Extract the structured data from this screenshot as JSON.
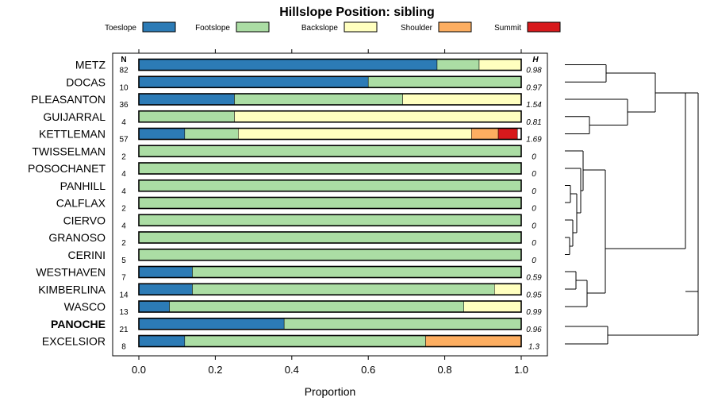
{
  "chart_data": {
    "type": "bar",
    "subtype": "stacked-horizontal-proportion",
    "title": "Hillslope Position: sibling",
    "xlabel": "Proportion",
    "ylabel": "",
    "xlim": [
      0,
      1
    ],
    "xticks": [
      "0.0",
      "0.2",
      "0.4",
      "0.6",
      "0.8",
      "1.0"
    ],
    "n_header": "N",
    "h_header": "H",
    "legend": [
      {
        "name": "Toeslope",
        "color": "#2C7BB6"
      },
      {
        "name": "Footslope",
        "color": "#ABDDA4"
      },
      {
        "name": "Backslope",
        "color": "#FFFFBF"
      },
      {
        "name": "Shoulder",
        "color": "#FDAE61"
      },
      {
        "name": "Summit",
        "color": "#D7191C"
      }
    ],
    "categories": [
      "METZ",
      "DOCAS",
      "PLEASANTON",
      "GUIJARRAL",
      "KETTLEMAN",
      "TWISSELMAN",
      "POSOCHANET",
      "PANHILL",
      "CALFLAX",
      "CIERVO",
      "GRANOSO",
      "CERINI",
      "WESTHAVEN",
      "KIMBERLINA",
      "WASCO",
      "PANOCHE",
      "EXCELSIOR"
    ],
    "highlighted": "PANOCHE",
    "n": [
      "82",
      "10",
      "36",
      "4",
      "57",
      "2",
      "4",
      "4",
      "2",
      "4",
      "2",
      "5",
      "7",
      "14",
      "13",
      "21",
      "8"
    ],
    "h": [
      "0.98",
      "0.97",
      "1.54",
      "0.81",
      "1.69",
      "0",
      "0",
      "0",
      "0",
      "0",
      "0",
      "0",
      "0.59",
      "0.95",
      "0.99",
      "0.96",
      "1.3"
    ],
    "series": [
      {
        "name": "Toeslope",
        "values": [
          0.78,
          0.6,
          0.25,
          0.0,
          0.12,
          0,
          0,
          0,
          0,
          0,
          0,
          0,
          0.14,
          0.14,
          0.08,
          0.38,
          0.12
        ]
      },
      {
        "name": "Footslope",
        "values": [
          0.11,
          0.4,
          0.44,
          0.25,
          0.14,
          1,
          1,
          1,
          1,
          1,
          1,
          1,
          0.86,
          0.79,
          0.77,
          0.62,
          0.63
        ]
      },
      {
        "name": "Backslope",
        "values": [
          0.11,
          0.0,
          0.31,
          0.75,
          0.61,
          0,
          0,
          0,
          0,
          0,
          0,
          0,
          0.0,
          0.07,
          0.15,
          0.0,
          0.0
        ]
      },
      {
        "name": "Shoulder",
        "values": [
          0.0,
          0.0,
          0.0,
          0.0,
          0.07,
          0,
          0,
          0,
          0,
          0,
          0,
          0,
          0.0,
          0.0,
          0.0,
          0.0,
          0.25
        ]
      },
      {
        "name": "Summit",
        "values": [
          0.0,
          0.0,
          0.0,
          0.0,
          0.05,
          0,
          0,
          0,
          0,
          0,
          0,
          0,
          0.0,
          0.0,
          0.0,
          0.0,
          0.0
        ]
      }
    ],
    "dendrogram": {
      "groups": [
        [
          "METZ",
          "DOCAS",
          "PLEASANTON",
          "GUIJARRAL",
          "KETTLEMAN"
        ],
        [
          "TWISSELMAN",
          "POSOCHANET",
          "PANHILL",
          "CALFLAX",
          "CIERVO",
          "GRANOSO",
          "CERINI",
          "WESTHAVEN",
          "KIMBERLINA",
          "WASCO"
        ],
        [
          "PANOCHE",
          "EXCELSIOR"
        ]
      ]
    }
  }
}
